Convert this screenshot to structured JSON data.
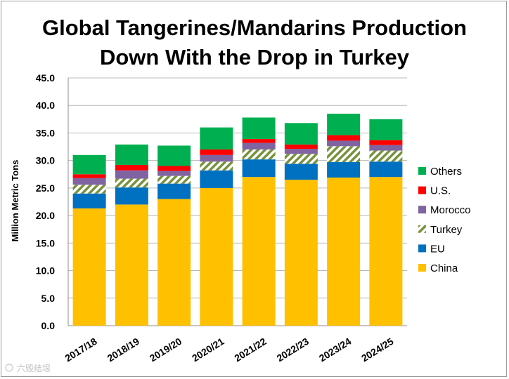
{
  "chart_data": {
    "type": "bar",
    "stacked": true,
    "title_lines": [
      "Global Tangerines/Mandarins Production",
      "Down With the Drop in Turkey"
    ],
    "xlabel": "",
    "ylabel": "Million Metric Tons",
    "ylim": [
      0,
      45
    ],
    "ytick_step": 5,
    "ytick_labels": [
      "0.0",
      "5.0",
      "10.0",
      "15.0",
      "20.0",
      "25.0",
      "30.0",
      "35.0",
      "40.0",
      "45.0"
    ],
    "grid": true,
    "legend_position": "right",
    "categories": [
      "2017/18",
      "2018/19",
      "2019/20",
      "2020/21",
      "2021/22",
      "2022/23",
      "2023/24",
      "2024/25"
    ],
    "series": [
      {
        "name": "China",
        "color": "#ffc000",
        "pattern": "solid",
        "values": [
          21.3,
          22.0,
          23.0,
          25.0,
          27.0,
          26.5,
          26.9,
          27.0
        ]
      },
      {
        "name": "EU",
        "color": "#0070c0",
        "pattern": "solid",
        "values": [
          2.7,
          3.1,
          2.8,
          3.2,
          3.2,
          2.9,
          2.8,
          2.8
        ]
      },
      {
        "name": "Turkey",
        "color": "#76923c",
        "pattern": "hatch",
        "values": [
          1.6,
          1.6,
          1.4,
          1.6,
          1.8,
          1.8,
          2.9,
          2.0
        ]
      },
      {
        "name": "Morocco",
        "color": "#8064a2",
        "pattern": "solid",
        "values": [
          1.2,
          1.5,
          0.9,
          1.2,
          1.2,
          0.9,
          1.0,
          1.0
        ]
      },
      {
        "name": "U.S.",
        "color": "#ff0000",
        "pattern": "solid",
        "values": [
          0.7,
          1.0,
          0.9,
          1.0,
          0.7,
          0.8,
          1.0,
          0.9
        ]
      },
      {
        "name": "Others",
        "color": "#00b050",
        "pattern": "solid",
        "values": [
          3.5,
          3.7,
          3.7,
          4.0,
          3.9,
          3.9,
          3.9,
          3.8
        ]
      }
    ],
    "legend_order": [
      "Others",
      "U.S.",
      "Morocco",
      "Turkey",
      "EU",
      "China"
    ]
  },
  "watermark": "六毁结垠"
}
